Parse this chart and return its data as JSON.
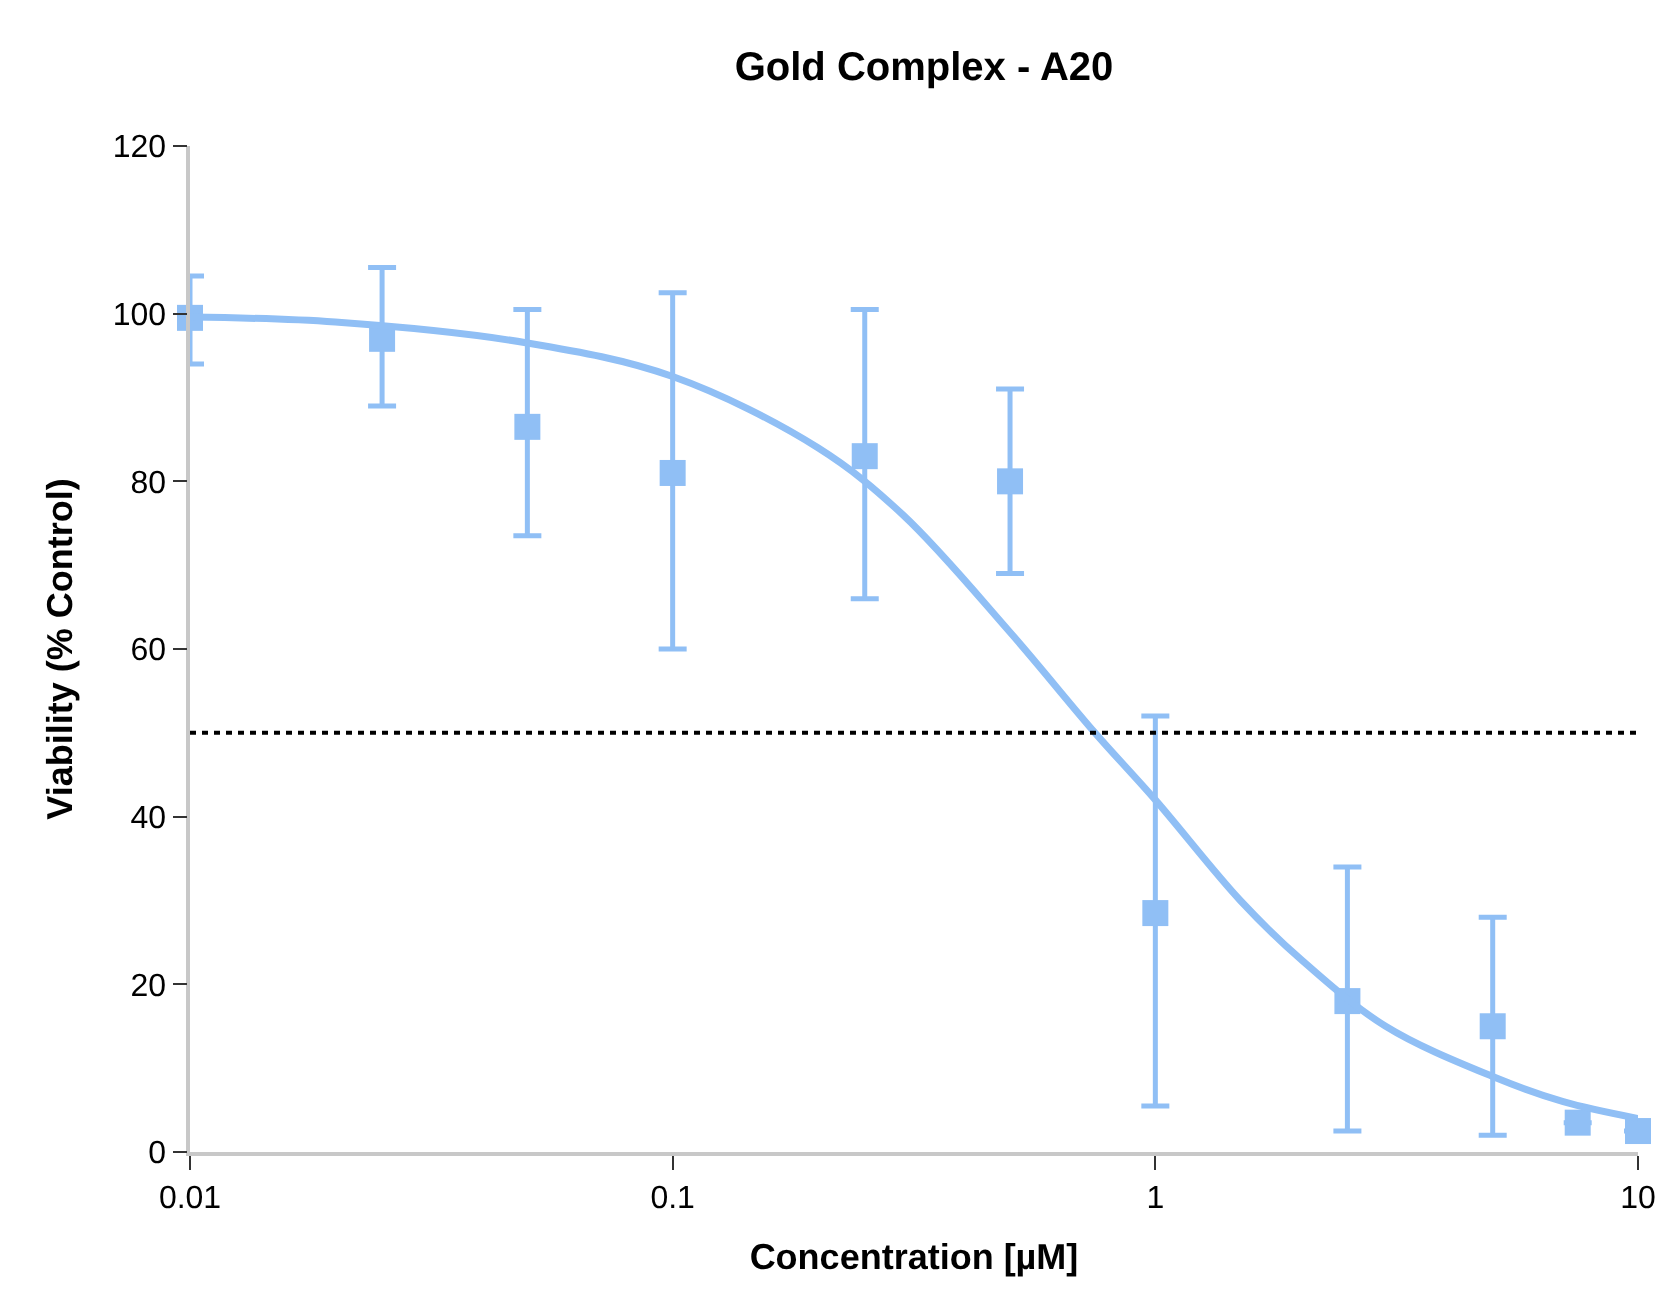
{
  "chart_data": {
    "type": "scatter",
    "title": "Gold Complex - A20",
    "xlabel": "Concentration [µM]",
    "ylabel": "Viability (% Control)",
    "log": "x",
    "xlim": [
      0.01,
      10
    ],
    "xticks": [
      0.01,
      0.1,
      1,
      10
    ],
    "ylim": [
      0,
      120
    ],
    "yticks": [
      0,
      20,
      40,
      60,
      80,
      100,
      120
    ],
    "marker": "square",
    "x": [
      0.01,
      0.025,
      0.05,
      0.1,
      0.25,
      0.5,
      1,
      2.5,
      5,
      7.5,
      10
    ],
    "series": [
      {
        "color": "#90bff5",
        "values": [
          99.5,
          97,
          86.5,
          81,
          83,
          80,
          28.5,
          18,
          15,
          3.5,
          2.5
        ],
        "errors": [
          [
            94,
            104.5
          ],
          [
            89,
            105.5
          ],
          [
            73.5,
            100.5
          ],
          [
            60,
            102.5
          ],
          [
            66,
            100.5
          ],
          [
            69,
            91
          ],
          [
            5.5,
            52
          ],
          [
            2.5,
            34
          ],
          [
            2,
            28
          ],
          null,
          null
        ]
      },
      {
        "type": "line",
        "color": "#90bff5",
        "marker": "none",
        "line_style": "solid",
        "x": [
          0.01,
          0.02,
          0.05,
          0.1,
          0.2,
          0.3,
          0.5,
          0.75,
          1,
          1.5,
          2,
          3,
          5,
          7,
          10
        ],
        "values": [
          99.6,
          99,
          96.5,
          92.5,
          84,
          76,
          62,
          50,
          42,
          30,
          23,
          15,
          9,
          6,
          4
        ]
      }
    ],
    "ref_lines": [
      {
        "axis": "y",
        "value": 50,
        "color": "#000000",
        "line_style": "dotted"
      }
    ]
  }
}
